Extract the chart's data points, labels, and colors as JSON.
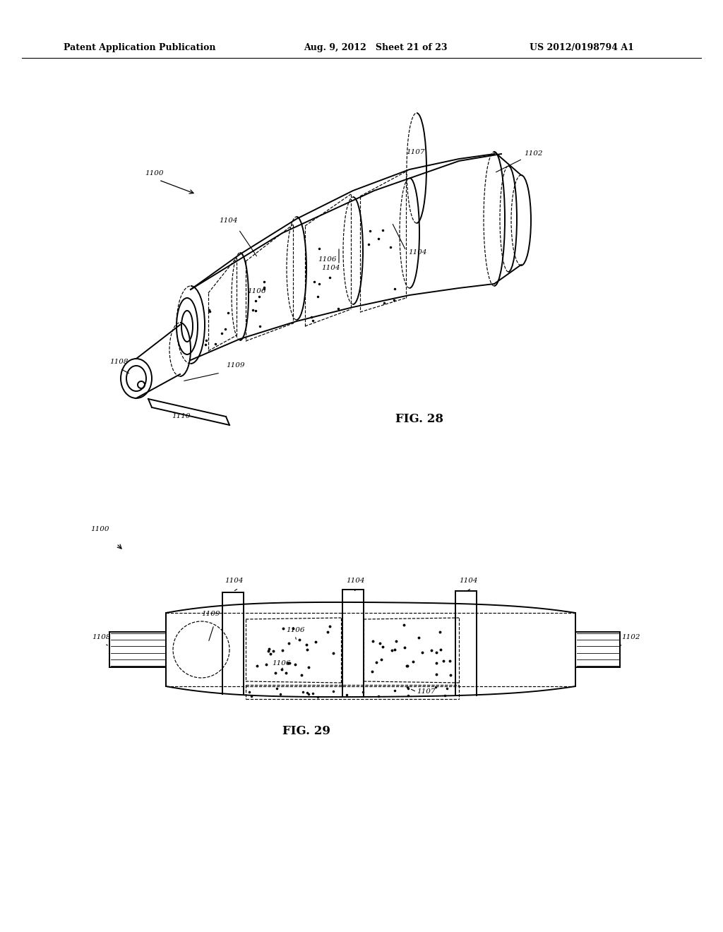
{
  "title_left": "Patent Application Publication",
  "title_mid": "Aug. 9, 2012   Sheet 21 of 23",
  "title_right": "US 2012/0198794 A1",
  "fig28_label": "FIG. 28",
  "fig29_label": "FIG. 29",
  "ref_1100": "1100",
  "ref_1102": "1102",
  "ref_1104": "1104",
  "ref_1106": "1106",
  "ref_1107": "1107",
  "ref_1108": "1108",
  "ref_1109": "1109",
  "ref_1110": "1110",
  "bg_color": "#ffffff",
  "line_color": "#000000",
  "dashed_color": "#000000",
  "text_color": "#000000",
  "lw_main": 1.5,
  "lw_thin": 0.8,
  "lw_dashed": 0.8,
  "font_header": 9,
  "font_label": 8,
  "font_ref": 7.5
}
